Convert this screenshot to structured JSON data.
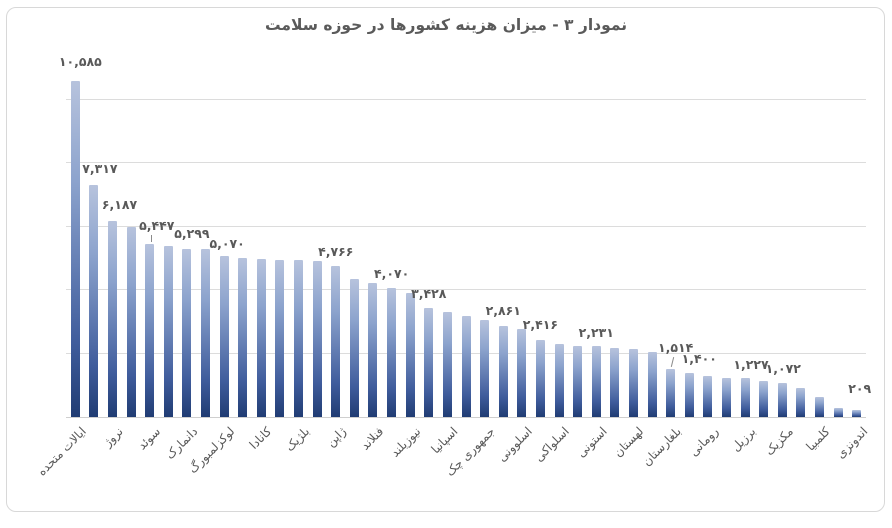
{
  "chart_data": {
    "type": "bar",
    "title": "نمودار ۳ - میزان هزینه کشورها در حوزه سلامت",
    "xlabel": "",
    "ylabel": "",
    "ylim": [
      0,
      11000
    ],
    "gridline_values": [
      2000,
      4000,
      6000,
      8000,
      10000
    ],
    "legend": "none",
    "bars": [
      {
        "v": 10585,
        "label": "۱۰,۵۸۵",
        "cat": "ایالات متحده"
      },
      {
        "v": 7317,
        "label": "۷,۳۱۷"
      },
      {
        "v": 6187,
        "label": "۶,۱۸۷",
        "cat": "نروژ"
      },
      {
        "v": 5986
      },
      {
        "v": 5447,
        "label": "۵,۴۴۷",
        "cat": "سوئد"
      },
      {
        "v": 5395
      },
      {
        "v": 5299,
        "label": "۵,۲۹۹",
        "cat": "دانمارک"
      },
      {
        "v": 5288
      },
      {
        "v": 5070,
        "label": "۵,۰۷۰",
        "cat": "لوکزلمبورگ"
      },
      {
        "v": 5005
      },
      {
        "v": 4974,
        "cat": "کانادا"
      },
      {
        "v": 4965
      },
      {
        "v": 4944,
        "cat": "بلژیک"
      },
      {
        "v": 4915
      },
      {
        "v": 4766,
        "label": "۴,۷۶۶",
        "cat": "ژاپن"
      },
      {
        "v": 4349
      },
      {
        "v": 4228,
        "cat": "فنلاند"
      },
      {
        "v": 4070,
        "label": "۴,۰۷۰"
      },
      {
        "v": 3923,
        "cat": "نیوزیلند"
      },
      {
        "v": 3428,
        "label": "۳,۴۲۸"
      },
      {
        "v": 3323,
        "cat": "اسپانیا"
      },
      {
        "v": 3192
      },
      {
        "v": 3058,
        "cat": "جمهوری چک"
      },
      {
        "v": 2861,
        "label": "۲,۸۶۱"
      },
      {
        "v": 2780,
        "cat": "اسلوونی"
      },
      {
        "v": 2416,
        "label": "۲,۴۱۶"
      },
      {
        "v": 2290,
        "cat": "اسلواکی"
      },
      {
        "v": 2238
      },
      {
        "v": 2231,
        "label": "۲,۲۳۱",
        "cat": "استونی"
      },
      {
        "v": 2182
      },
      {
        "v": 2150,
        "cat": "لهستان"
      },
      {
        "v": 2056
      },
      {
        "v": 1514,
        "label": "۱,۵۱۴",
        "cat": "بلغارستان"
      },
      {
        "v": 1400,
        "label": "۱,۴۰۰"
      },
      {
        "v": 1282,
        "cat": "رومانی"
      },
      {
        "v": 1240
      },
      {
        "v": 1227,
        "label": "۱,۲۲۷",
        "cat": "برزیل"
      },
      {
        "v": 1138
      },
      {
        "v": 1072,
        "label": "۱,۰۷۲",
        "cat": "مکزیک"
      },
      {
        "v": 930
      },
      {
        "v": 619,
        "cat": "کلمبیا"
      },
      {
        "v": 280
      },
      {
        "v": 209,
        "label": "۲۰۹",
        "cat": "اندونزی"
      }
    ],
    "colors": {
      "bar_gradient_top": "#b7c3dd",
      "bar_gradient_upper_mid": "#8ca3cd",
      "bar_gradient_lower_mid": "#3f5c9c",
      "bar_gradient_bottom": "#203c73",
      "gridline": "#dcdcdc",
      "axis_line": "#cfcfcf",
      "text": "#595959"
    }
  }
}
